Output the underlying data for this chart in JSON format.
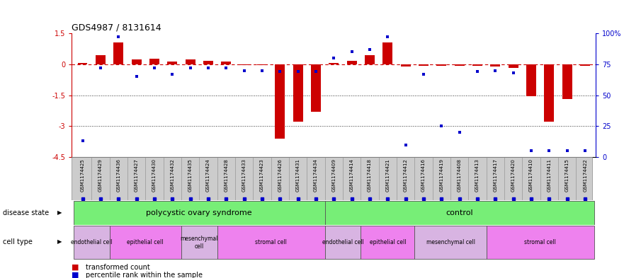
{
  "title": "GDS4987 / 8131614",
  "samples": [
    "GSM1174425",
    "GSM1174429",
    "GSM1174436",
    "GSM1174427",
    "GSM1174430",
    "GSM1174432",
    "GSM1174435",
    "GSM1174424",
    "GSM1174428",
    "GSM1174433",
    "GSM1174423",
    "GSM1174426",
    "GSM1174431",
    "GSM1174434",
    "GSM1174409",
    "GSM1174414",
    "GSM1174418",
    "GSM1174421",
    "GSM1174412",
    "GSM1174416",
    "GSM1174419",
    "GSM1174408",
    "GSM1174413",
    "GSM1174417",
    "GSM1174420",
    "GSM1174410",
    "GSM1174411",
    "GSM1174415",
    "GSM1174422"
  ],
  "bar_values": [
    0.05,
    0.45,
    1.05,
    0.22,
    0.28,
    0.12,
    0.25,
    0.18,
    0.12,
    -0.05,
    -0.05,
    -3.6,
    -2.8,
    -2.3,
    0.08,
    0.18,
    0.45,
    1.05,
    -0.12,
    -0.08,
    -0.08,
    -0.08,
    -0.08,
    -0.12,
    -0.18,
    -1.55,
    -2.8,
    -1.7,
    -0.08
  ],
  "dot_values": [
    13,
    72,
    97,
    65,
    72,
    67,
    72,
    72,
    72,
    70,
    70,
    69,
    69,
    69,
    80,
    85,
    87,
    97,
    10,
    67,
    25,
    20,
    69,
    70,
    68,
    5,
    5,
    5,
    5
  ],
  "ylim_left": [
    -4.5,
    1.5
  ],
  "ylim_right": [
    0,
    100
  ],
  "y_ticks_left": [
    1.5,
    0,
    -1.5,
    -3.0,
    -4.5
  ],
  "y_ticks_right": [
    100,
    75,
    50,
    25,
    0
  ],
  "bar_color": "#cc0000",
  "dot_color": "#0000cc",
  "zero_line_color": "#cc0000",
  "grid_line_color": "#333333",
  "bg_color": "#ffffff",
  "sample_box_color": "#d0d0d0",
  "disease_state_color": "#77ee77",
  "cell_colors": [
    "#d8b4e2",
    "#ee82ee",
    "#d8b4e2",
    "#ee82ee"
  ]
}
